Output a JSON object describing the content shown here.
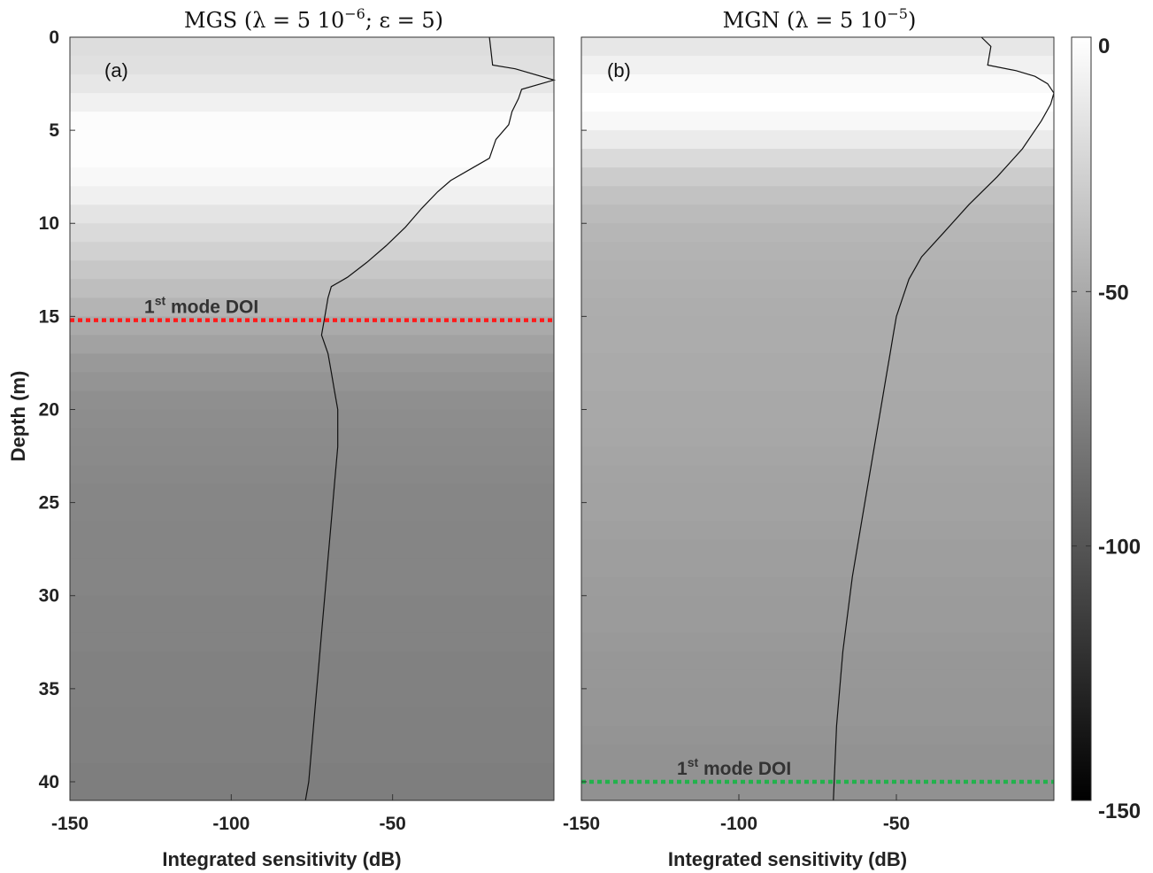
{
  "chart_data": [
    {
      "type": "line",
      "panel_label": "(a)",
      "title": "MGS (λ = 5 10⁻⁶; ε = 5)",
      "title_parts": {
        "lead": "MGS (λ = 5 10",
        "sup": "−6",
        "tail": "; ε = 5)"
      },
      "xlabel": "Integrated sensitivity (dB)",
      "ylabel": "Depth (m)",
      "xlim": [
        -150,
        0
      ],
      "ylim": [
        41,
        0
      ],
      "y_reversed": true,
      "xticks": [
        "-150",
        "-100",
        "-50"
      ],
      "yticks": [
        "0",
        "5",
        "10",
        "15",
        "20",
        "25",
        "30",
        "35",
        "40"
      ],
      "series": [
        {
          "x": [
            -20,
            -19,
            -12,
            0,
            -10,
            -11,
            -13,
            -14,
            -18,
            -20,
            -25,
            -32,
            -36,
            -41,
            -46,
            -52,
            -58,
            -64,
            -69,
            -70,
            -71,
            -72,
            -70,
            -69,
            -68,
            -67,
            -67,
            -68,
            -69,
            -70,
            -71,
            -72,
            -73,
            -74,
            -75,
            -76,
            -77
          ],
          "y": [
            0,
            1.5,
            1.7,
            2.3,
            2.8,
            3.3,
            4.0,
            4.7,
            5.5,
            6.5,
            7.0,
            7.7,
            8.3,
            9.2,
            10.2,
            11.2,
            12.1,
            12.9,
            13.4,
            14.0,
            15.0,
            16.0,
            17.0,
            18.0,
            19.0,
            20.0,
            22.0,
            24.0,
            26.0,
            28.0,
            30.0,
            32.0,
            34.0,
            36.0,
            38.0,
            40.0,
            41.0
          ]
        }
      ],
      "background_db": [
        -20,
        -18,
        -14,
        -8,
        -2,
        -1,
        -1,
        -4,
        -9,
        -16,
        -22,
        -27,
        -33,
        -38,
        -44,
        -50,
        -55,
        -60,
        -63,
        -66,
        -67,
        -68,
        -69,
        -70,
        -71,
        -71,
        -72,
        -72,
        -72,
        -72,
        -73,
        -73,
        -73,
        -74,
        -74,
        -74,
        -75,
        -75,
        -75,
        -76,
        -76
      ],
      "annotations": [
        {
          "text": "1",
          "sup": "st",
          "rest": " mode DOI",
          "depth": 15.2,
          "color": "#ff1a1a"
        }
      ]
    },
    {
      "type": "line",
      "panel_label": "(b)",
      "title": "MGN (λ = 5 10⁻⁵)",
      "title_parts": {
        "lead": "MGN (λ = 5 10",
        "sup": "−5",
        "tail": ")"
      },
      "xlabel": "Integrated sensitivity (dB)",
      "ylabel": "",
      "xlim": [
        -150,
        0
      ],
      "ylim": [
        41,
        0
      ],
      "y_reversed": true,
      "xticks": [
        "-150",
        "-100",
        "-50"
      ],
      "yticks": [],
      "series": [
        {
          "x": [
            -23,
            -20,
            -21,
            -12,
            -6,
            -2,
            0,
            -1,
            -4,
            -10,
            -18,
            -27,
            -35,
            -42,
            -46,
            -48,
            -50,
            -51,
            -52,
            -53,
            -55,
            -58,
            -61,
            -64,
            -67,
            -69,
            -70
          ],
          "y": [
            0,
            0.5,
            1.5,
            1.8,
            2.1,
            2.5,
            3.0,
            3.6,
            4.5,
            6.0,
            7.5,
            9.0,
            10.5,
            11.8,
            13.0,
            14.0,
            15.0,
            16.0,
            17.0,
            18.0,
            20.0,
            23.0,
            26.0,
            29.0,
            33.0,
            37.0,
            41.0
          ]
        }
      ],
      "background_db": [
        -14,
        -8,
        -3,
        0,
        -4,
        -12,
        -22,
        -30,
        -36,
        -40,
        -43,
        -45,
        -46,
        -47,
        -48,
        -49,
        -49,
        -50,
        -50,
        -51,
        -51,
        -52,
        -53,
        -54,
        -55,
        -55,
        -56,
        -57,
        -57,
        -58,
        -59,
        -59,
        -60,
        -61,
        -61,
        -62,
        -62,
        -63,
        -64,
        -64,
        -65
      ],
      "annotations": [
        {
          "text": "1",
          "sup": "st",
          "rest": " mode DOI",
          "depth": 40.0,
          "color": "#22b24c"
        }
      ]
    }
  ],
  "colorbar": {
    "range": [
      -150,
      0
    ],
    "colormap": "gray",
    "ticks": [
      "0",
      "-50",
      "-100",
      "-150"
    ]
  }
}
